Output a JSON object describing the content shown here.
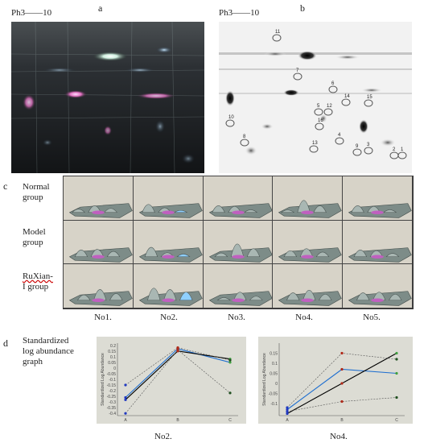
{
  "panel_a": {
    "letter": "a",
    "ph_label": "Ph3",
    "ph_end": "10"
  },
  "panel_b": {
    "letter": "b",
    "ph_label": "Ph3",
    "ph_end": "10",
    "spots": [
      "11",
      "7",
      "6",
      "14",
      "15",
      "12",
      "5",
      "10",
      "16",
      "4",
      "8",
      "13",
      "9",
      "3",
      "2",
      "1"
    ]
  },
  "panel_c": {
    "letter": "c",
    "rows": [
      {
        "label_line1": "Normal",
        "label_line2": "group"
      },
      {
        "label_line1": "Model",
        "label_line2": "group"
      },
      {
        "label_line1": "RuXian-",
        "label_line2": "I group"
      }
    ],
    "columns": [
      "No1.",
      "No2.",
      "No3.",
      "No4.",
      "No5."
    ]
  },
  "panel_d": {
    "letter": "d",
    "title_line1": "Standardized",
    "title_line2": "log abundance",
    "title_line3": "graph",
    "plot_captions": [
      "No2.",
      "No4."
    ]
  },
  "chart_data": [
    {
      "type": "line",
      "title": "",
      "ylabel": "Standardized Log Abundance",
      "xlabel": "",
      "categories": [
        "A",
        "B",
        "C"
      ],
      "ylim": [
        -0.42,
        0.22
      ],
      "yticks": [
        "0.2",
        "0.15",
        "0.1",
        "0.05",
        "0",
        "-0.05",
        "-0.1",
        "-0.15",
        "-0.2",
        "-0.25",
        "-0.3",
        "-0.35",
        "-0.4"
      ],
      "grid": false,
      "series": [
        {
          "values": [
            -0.26,
            0.17,
            0.05
          ],
          "color": "#1f6fd0",
          "style": "solid"
        },
        {
          "values": [
            -0.28,
            0.15,
            0.08
          ],
          "color": "#000000",
          "style": "solid"
        },
        {
          "values": [
            -0.15,
            0.18,
            0.07
          ],
          "color": "#555555",
          "style": "dashed"
        },
        {
          "values": [
            -0.4,
            0.16,
            -0.22
          ],
          "color": "#555555",
          "style": "dashed"
        }
      ]
    },
    {
      "type": "line",
      "title": "",
      "ylabel": "Standardized Log Abundance",
      "xlabel": "",
      "categories": [
        "A",
        "B",
        "C"
      ],
      "ylim": [
        -0.16,
        0.2
      ],
      "yticks": [
        "0.15",
        "0.1",
        "0.05",
        "0",
        "-0.05",
        "-0.1"
      ],
      "grid": false,
      "series": [
        {
          "values": [
            -0.13,
            0.07,
            0.05
          ],
          "color": "#1f6fd0",
          "style": "solid"
        },
        {
          "values": [
            -0.15,
            0.0,
            0.15
          ],
          "color": "#000000",
          "style": "solid"
        },
        {
          "values": [
            -0.12,
            0.15,
            0.12
          ],
          "color": "#555555",
          "style": "dashed"
        },
        {
          "values": [
            -0.14,
            -0.09,
            -0.07
          ],
          "color": "#555555",
          "style": "dashed"
        }
      ]
    }
  ]
}
